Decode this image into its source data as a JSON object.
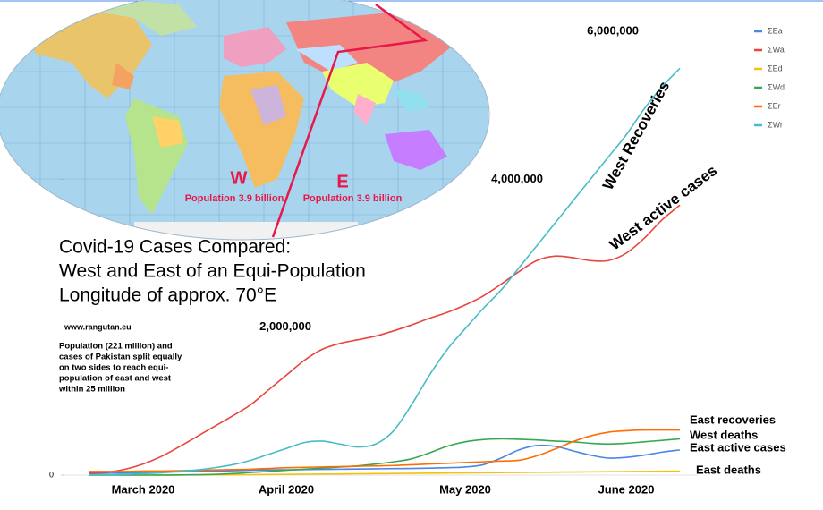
{
  "chart_data": {
    "type": "line",
    "title": [
      "Covid-19 Cases Compared:",
      "West and East of an Equi-Population",
      "Longitude of approx. 70°E"
    ],
    "source": "www.rangutan.eu",
    "note": [
      "Population (221 million) and",
      "cases of Pakistan split equally",
      "on two sides to reach equi-",
      "population of east and west",
      "within 25 million"
    ],
    "map_labels": {
      "west": "W",
      "east": "E",
      "west_population": "Population 3.9 billion",
      "east_population": "Population 3.9 billion"
    },
    "annotations": [
      "West Recoveries",
      "West active cases",
      "East recoveries",
      "West deaths",
      "East active cases",
      "East deaths"
    ],
    "categories": [
      null,
      null,
      null,
      "March 2020",
      null,
      null,
      null,
      null,
      null,
      null,
      null,
      "April 2020",
      null,
      null,
      null,
      null,
      null,
      null,
      null,
      null,
      null,
      "May 2020",
      null,
      null,
      null,
      null,
      null,
      null,
      null,
      null,
      "June 2020",
      null,
      null,
      null
    ],
    "ylim": [
      0,
      6000000
    ],
    "yticks": [
      0,
      {
        "value": 2000000,
        "label": "2,000,000"
      },
      {
        "value": 4000000,
        "label": "4,000,000"
      },
      {
        "value": 6000000,
        "label": "6,000,000"
      }
    ],
    "grid": false,
    "legend": "top-right",
    "series": [
      {
        "name": "ΣEa",
        "color": "#4a86e8",
        "values": [
          20000,
          25000,
          30000,
          35000,
          40000,
          45000,
          50000,
          55000,
          60000,
          65000,
          70000,
          72000,
          75000,
          78000,
          80000,
          82000,
          85000,
          88000,
          90000,
          95000,
          100000,
          110000,
          140000,
          230000,
          340000,
          400000,
          390000,
          330000,
          270000,
          230000,
          240000,
          270000,
          310000,
          340000
        ]
      },
      {
        "name": "ΣWa",
        "color": "#e8453c",
        "values": [
          30000,
          40000,
          80000,
          150000,
          250000,
          380000,
          520000,
          660000,
          800000,
          950000,
          1150000,
          1350000,
          1550000,
          1700000,
          1780000,
          1830000,
          1880000,
          1950000,
          2030000,
          2120000,
          2200000,
          2300000,
          2420000,
          2580000,
          2750000,
          2900000,
          2960000,
          2940000,
          2900000,
          2900000,
          3000000,
          3200000,
          3450000,
          3650000
        ]
      },
      {
        "name": "ΣEd",
        "color": "#f4c20d",
        "values": [
          0,
          0,
          0,
          0,
          0,
          1000,
          2000,
          3000,
          4000,
          6000,
          8000,
          10000,
          12000,
          14000,
          16000,
          18000,
          20000,
          22000,
          24000,
          26000,
          28000,
          30000,
          32000,
          34000,
          36000,
          38000,
          40000,
          42000,
          44000,
          46000,
          48000,
          50000,
          52000,
          54000
        ]
      },
      {
        "name": "ΣWd",
        "color": "#34a853",
        "values": [
          0,
          0,
          0,
          0,
          1000,
          2000,
          5000,
          10000,
          20000,
          35000,
          50000,
          65000,
          80000,
          95000,
          110000,
          125000,
          150000,
          180000,
          220000,
          300000,
          390000,
          450000,
          480000,
          490000,
          485000,
          475000,
          460000,
          450000,
          430000,
          420000,
          430000,
          450000,
          470000,
          490000
        ]
      },
      {
        "name": "ΣEr",
        "color": "#ff6d01",
        "values": [
          50000,
          50000,
          50000,
          55000,
          55000,
          60000,
          65000,
          70000,
          75000,
          80000,
          90000,
          100000,
          105000,
          110000,
          115000,
          120000,
          125000,
          130000,
          140000,
          150000,
          160000,
          170000,
          180000,
          190000,
          200000,
          260000,
          350000,
          450000,
          530000,
          580000,
          600000,
          610000,
          610000,
          610000
        ]
      },
      {
        "name": "ΣWr",
        "color": "#46bdc6",
        "values": [
          0,
          0,
          10000,
          20000,
          30000,
          50000,
          70000,
          100000,
          140000,
          200000,
          280000,
          360000,
          440000,
          460000,
          420000,
          380000,
          420000,
          600000,
          950000,
          1350000,
          1700000,
          1980000,
          2250000,
          2500000,
          2800000,
          3100000,
          3400000,
          3700000,
          4000000,
          4300000,
          4600000,
          4950000,
          5250000,
          5500000
        ]
      }
    ]
  }
}
